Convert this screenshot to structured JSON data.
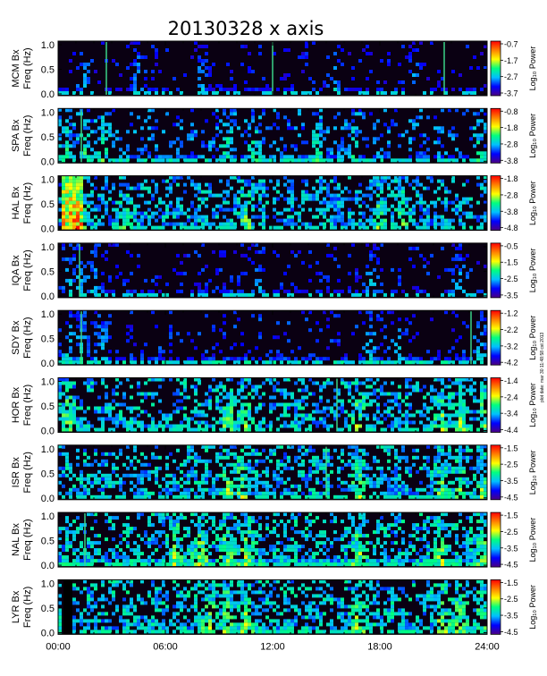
{
  "chart_data": {
    "type": "heatmap",
    "title": "20130328 x axis",
    "x_tick_labels": [
      "00:00",
      "06:00",
      "12:00",
      "18:00",
      "24:00"
    ],
    "x_range_hours": [
      0,
      24
    ],
    "x_tick_hours": [
      0,
      6,
      12,
      18,
      24
    ],
    "y_tick_labels": [
      "0.0",
      "0.5",
      "1.0"
    ],
    "y_range_hz": [
      0,
      1
    ],
    "colorbar_label": "Log₁₀ Power",
    "colormap": [
      "#4b0082",
      "#0000ff",
      "#00bfff",
      "#00ff80",
      "#ffff00",
      "#ff8000",
      "#ff0000"
    ],
    "background_color": "#0a0012",
    "side_note": "plot date: mar 30 11:48:58 cst 2013",
    "panels": [
      {
        "station": "MCM Bx",
        "ylabel": "Freq (Hz)",
        "cb_ticks": [
          "-0.7",
          "-1.7",
          "-2.7",
          "-3.7"
        ],
        "density": 0.1,
        "base": 0.18,
        "lines_hours": [
          2.7,
          12.0,
          21.6
        ],
        "bursts_hours": [
          1.5,
          4.5,
          8.0,
          15.5,
          20.0
        ],
        "low_band": 0.25
      },
      {
        "station": "SPA Bx",
        "ylabel": "Freq (Hz)",
        "cb_ticks": [
          "-0.8",
          "-1.8",
          "-2.8",
          "-3.8"
        ],
        "density": 0.28,
        "base": 0.3,
        "lines_hours": [
          1.3
        ],
        "bursts_hours": [
          0.5,
          1.5,
          2.5,
          9.5,
          11.0,
          14.5,
          16.5,
          23.5
        ],
        "low_band": 0.5
      },
      {
        "station": "HAL Bx",
        "ylabel": "Freq (Hz)",
        "cb_ticks": [
          "-1.8",
          "-2.8",
          "-3.8",
          "-4.8"
        ],
        "density": 0.55,
        "base": 0.38,
        "lines_hours": [],
        "bursts_hours": [
          0.8,
          1.2,
          3.8,
          10.5,
          18.0,
          19.2
        ],
        "low_band": 0.45,
        "hot_region_hours": [
          0.3,
          1.4
        ]
      },
      {
        "station": "IQA Bx",
        "ylabel": "Freq (Hz)",
        "cb_ticks": [
          "-0.5",
          "-1.5",
          "-2.5",
          "-3.5"
        ],
        "density": 0.14,
        "base": 0.2,
        "lines_hours": [
          1.2
        ],
        "bursts_hours": [
          0.7,
          1.2,
          2.0,
          11.2,
          17.5,
          22.5
        ],
        "low_band": 0.3
      },
      {
        "station": "SDY Bx",
        "ylabel": "Freq (Hz)",
        "cb_ticks": [
          "-1.2",
          "-2.2",
          "-3.2",
          "-4.2"
        ],
        "density": 0.16,
        "base": 0.22,
        "lines_hours": [
          1.3,
          23.1
        ],
        "bursts_hours": [
          0.6,
          1.3,
          2.4,
          17.5,
          19.0,
          23.6
        ],
        "low_band": 0.55
      },
      {
        "station": "HOR Bx",
        "ylabel": "Freq (Hz)",
        "cb_ticks": [
          "-1.4",
          "-2.4",
          "-3.4",
          "-4.4"
        ],
        "density": 0.55,
        "base": 0.4,
        "lines_hours": [
          15.6
        ],
        "bursts_hours": [
          0.5,
          9.5,
          10.5,
          16.8,
          21.5,
          22.5,
          23.8
        ],
        "low_band": 0.45
      },
      {
        "station": "ISR Bx",
        "ylabel": "Freq (Hz)",
        "cb_ticks": [
          "-1.5",
          "-2.5",
          "-3.5",
          "-4.5"
        ],
        "density": 0.55,
        "base": 0.4,
        "lines_hours": [
          15.0
        ],
        "bursts_hours": [
          9.5,
          10.3,
          16.8,
          21.5,
          22.5,
          23.8
        ],
        "low_band": 0.45
      },
      {
        "station": "NAL Bx",
        "ylabel": "Freq (Hz)",
        "cb_ticks": [
          "-1.5",
          "-2.5",
          "-3.5",
          "-4.5"
        ],
        "density": 0.6,
        "base": 0.42,
        "lines_hours": [
          1.5
        ],
        "bursts_hours": [
          6.5,
          8.0,
          9.5,
          10.5,
          16.8,
          21.5,
          23.8
        ],
        "low_band": 0.7
      },
      {
        "station": "LYR Bx",
        "ylabel": "Freq (Hz)",
        "cb_ticks": [
          "-1.5",
          "-2.5",
          "-3.5",
          "-4.5"
        ],
        "density": 0.58,
        "base": 0.42,
        "lines_hours": [],
        "bursts_hours": [
          8.5,
          9.5,
          10.5,
          16.8,
          21.5,
          22.5,
          23.8
        ],
        "low_band": 0.55,
        "gap_hours": [
          0.3,
          0.8
        ]
      }
    ]
  }
}
